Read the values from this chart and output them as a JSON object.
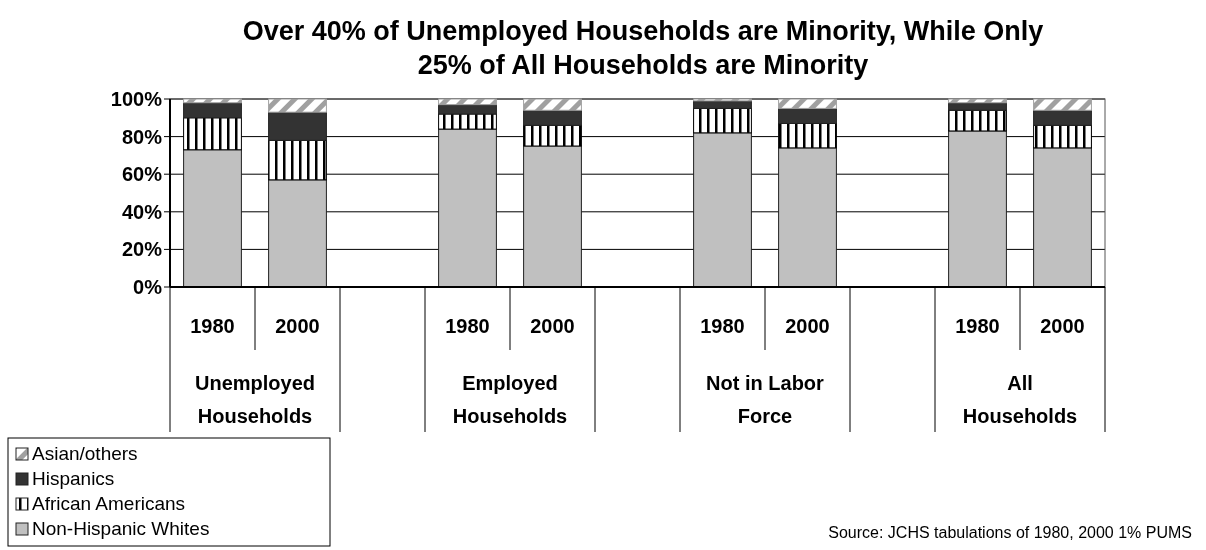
{
  "chart_data": {
    "type": "bar",
    "stacked": true,
    "title": "Over 40% of Unemployed Households are Minority, While Only 25% of All Households are Minority",
    "categories": [
      "1980",
      "2000",
      null,
      "1980",
      "2000",
      null,
      "1980",
      "2000",
      null,
      "1980",
      "2000"
    ],
    "series": [
      {
        "name": "Non-Hispanic Whites",
        "color": "#c0c0c0",
        "values": [
          73,
          57,
          null,
          84,
          75,
          null,
          82,
          74,
          null,
          83,
          74
        ]
      },
      {
        "name": "African Americans",
        "color": "#000000",
        "values": [
          17,
          21,
          null,
          8,
          11,
          null,
          13,
          13,
          null,
          11,
          12
        ]
      },
      {
        "name": "Hispanics",
        "color": "#333333",
        "values": [
          8,
          15,
          null,
          5,
          8,
          null,
          4,
          8,
          null,
          4,
          8
        ]
      },
      {
        "name": "Asian/others",
        "color": "#a0a0a0",
        "values": [
          2,
          7,
          null,
          3,
          6,
          null,
          1,
          5,
          null,
          2,
          6
        ]
      }
    ],
    "ylim": [
      0,
      100
    ],
    "yticks": [
      {
        "value": 0,
        "label": "0%"
      },
      {
        "value": 20,
        "label": "20%"
      },
      {
        "value": 40,
        "label": "40%"
      },
      {
        "value": 60,
        "label": "60%"
      },
      {
        "value": 80,
        "label": "80%"
      },
      {
        "value": 100,
        "label": "100%"
      }
    ],
    "grid": "y",
    "legend": "bottom left",
    "annotations": [
      "Unemployed Households",
      "Employed Households",
      "Not in Labor Force",
      "All Households",
      "Source: JCHS tabulations of 1980, 2000 1% PUMS"
    ]
  }
}
